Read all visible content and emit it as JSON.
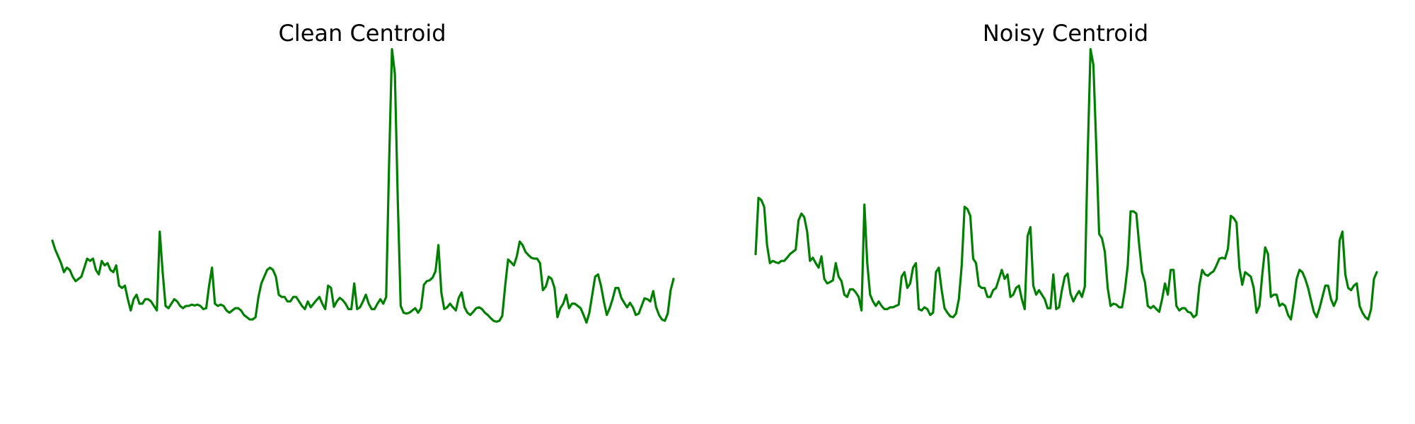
{
  "chart_data": [
    {
      "type": "line",
      "title": "Clean Centroid",
      "xlabel": "",
      "ylabel": "",
      "axes_visible": false,
      "grid": false,
      "xlim": [
        0,
        139
      ],
      "ylim": [
        0.05,
        0.85
      ],
      "series": [
        {
          "color": "#008000",
          "values": [
            0.41,
            0.39,
            0.375,
            0.36,
            0.34,
            0.35,
            0.345,
            0.33,
            0.32,
            0.325,
            0.33,
            0.35,
            0.37,
            0.365,
            0.37,
            0.345,
            0.335,
            0.365,
            0.355,
            0.36,
            0.345,
            0.34,
            0.355,
            0.31,
            0.305,
            0.31,
            0.28,
            0.255,
            0.28,
            0.29,
            0.27,
            0.27,
            0.28,
            0.28,
            0.275,
            0.265,
            0.255,
            0.43,
            0.34,
            0.265,
            0.26,
            0.27,
            0.28,
            0.275,
            0.265,
            0.26,
            0.265,
            0.265,
            0.268,
            0.266,
            0.268,
            0.265,
            0.258,
            0.26,
            0.31,
            0.35,
            0.27,
            0.265,
            0.268,
            0.265,
            0.255,
            0.25,
            0.255,
            0.26,
            0.26,
            0.255,
            0.245,
            0.24,
            0.235,
            0.235,
            0.24,
            0.285,
            0.315,
            0.33,
            0.345,
            0.35,
            0.345,
            0.33,
            0.29,
            0.285,
            0.285,
            0.275,
            0.275,
            0.285,
            0.285,
            0.275,
            0.265,
            0.258,
            0.275,
            0.262,
            0.27,
            0.278,
            0.285,
            0.27,
            0.258,
            0.31,
            0.305,
            0.263,
            0.275,
            0.283,
            0.278,
            0.27,
            0.258,
            0.258,
            0.315,
            0.258,
            0.262,
            0.275,
            0.29,
            0.27,
            0.258,
            0.258,
            0.27,
            0.28,
            0.27,
            0.285,
            0.58,
            0.835,
            0.78,
            0.5,
            0.265,
            0.25,
            0.248,
            0.25,
            0.255,
            0.26,
            0.25,
            0.26,
            0.312,
            0.32,
            0.322,
            0.328,
            0.342,
            0.4,
            0.295,
            0.258,
            0.262,
            0.27,
            0.262,
            0.255,
            0.283,
            0.295,
            0.262,
            0.25,
            0.245,
            0.252,
            0.26,
            0.262,
            0.258,
            0.25,
            0.245,
            0.238,
            0.232,
            0.23,
            0.232,
            0.243,
            0.31,
            0.368,
            0.362,
            0.355,
            0.375,
            0.408,
            0.4,
            0.385,
            0.378,
            0.372,
            0.37,
            0.37,
            0.36,
            0.3,
            0.308,
            0.33,
            0.325,
            0.305,
            0.24,
            0.26,
            0.27,
            0.29,
            0.26,
            0.27,
            0.27,
            0.265,
            0.26,
            0.245,
            0.228,
            0.25,
            0.29,
            0.33,
            0.335,
            0.31,
            0.275,
            0.245,
            0.26,
            0.28,
            0.305,
            0.305,
            0.283,
            0.272,
            0.262,
            0.272,
            0.262,
            0.245,
            0.248,
            0.265,
            0.282,
            0.28,
            0.275,
            0.298,
            0.262,
            0.245,
            0.235,
            0.232,
            0.248,
            0.3,
            0.325
          ]
        }
      ]
    },
    {
      "type": "line",
      "title": "Noisy Centroid",
      "xlabel": "",
      "ylabel": "",
      "axes_visible": false,
      "grid": false,
      "xlim": [
        0,
        139
      ],
      "ylim": [
        0.05,
        0.85
      ],
      "series": [
        {
          "color": "#008000",
          "values": [
            0.38,
            0.505,
            0.5,
            0.485,
            0.4,
            0.36,
            0.365,
            0.362,
            0.36,
            0.365,
            0.365,
            0.372,
            0.38,
            0.385,
            0.39,
            0.455,
            0.47,
            0.462,
            0.43,
            0.365,
            0.372,
            0.36,
            0.35,
            0.375,
            0.325,
            0.315,
            0.318,
            0.322,
            0.36,
            0.33,
            0.32,
            0.29,
            0.285,
            0.302,
            0.302,
            0.295,
            0.285,
            0.255,
            0.49,
            0.36,
            0.29,
            0.275,
            0.265,
            0.275,
            0.265,
            0.258,
            0.258,
            0.262,
            0.262,
            0.265,
            0.268,
            0.33,
            0.34,
            0.305,
            0.315,
            0.35,
            0.36,
            0.258,
            0.255,
            0.262,
            0.258,
            0.245,
            0.25,
            0.34,
            0.35,
            0.3,
            0.26,
            0.25,
            0.242,
            0.24,
            0.248,
            0.28,
            0.355,
            0.485,
            0.48,
            0.465,
            0.37,
            0.36,
            0.31,
            0.305,
            0.305,
            0.285,
            0.285,
            0.3,
            0.305,
            0.325,
            0.345,
            0.325,
            0.335,
            0.285,
            0.29,
            0.305,
            0.31,
            0.28,
            0.258,
            0.42,
            0.44,
            0.31,
            0.29,
            0.3,
            0.29,
            0.28,
            0.26,
            0.26,
            0.335,
            0.258,
            0.262,
            0.3,
            0.33,
            0.337,
            0.292,
            0.275,
            0.288,
            0.298,
            0.285,
            0.308,
            0.6,
            0.835,
            0.8,
            0.62,
            0.425,
            0.415,
            0.385,
            0.305,
            0.265,
            0.27,
            0.268,
            0.262,
            0.262,
            0.3,
            0.355,
            0.475,
            0.475,
            0.47,
            0.4,
            0.34,
            0.318,
            0.265,
            0.26,
            0.265,
            0.258,
            0.252,
            0.28,
            0.315,
            0.29,
            0.345,
            0.345,
            0.265,
            0.255,
            0.26,
            0.26,
            0.252,
            0.25,
            0.24,
            0.245,
            0.31,
            0.345,
            0.335,
            0.332,
            0.338,
            0.342,
            0.355,
            0.37,
            0.372,
            0.37,
            0.392,
            0.465,
            0.46,
            0.45,
            0.35,
            0.312,
            0.34,
            0.335,
            0.33,
            0.305,
            0.25,
            0.265,
            0.335,
            0.395,
            0.38,
            0.285,
            0.29,
            0.29,
            0.265,
            0.27,
            0.265,
            0.245,
            0.235,
            0.275,
            0.325,
            0.345,
            0.34,
            0.325,
            0.305,
            0.278,
            0.252,
            0.24,
            0.26,
            0.285,
            0.31,
            0.31,
            0.28,
            0.265,
            0.28,
            0.41,
            0.43,
            0.335,
            0.305,
            0.3,
            0.31,
            0.315,
            0.265,
            0.25,
            0.24,
            0.235,
            0.258,
            0.325,
            0.34
          ]
        }
      ]
    }
  ]
}
